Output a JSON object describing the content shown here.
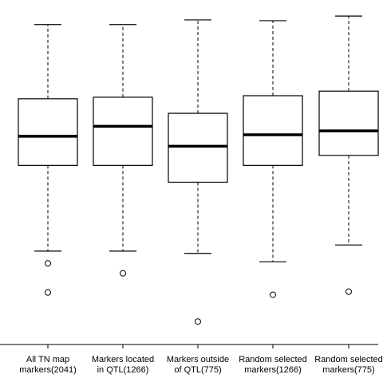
{
  "chart_data": {
    "type": "box",
    "title": "",
    "xlabel": "",
    "ylabel": "",
    "categories": [
      "All TN map\nmarkers(2041)",
      "Markers located\nin QTL(1266)",
      "Markers outside\nof QTL(775)",
      "Random selected\nmarkers(1266)",
      "Random selected\nmarkers(775)"
    ],
    "ylim": [
      0,
      450
    ],
    "boxes": [
      {
        "whisker_low": 122,
        "q1": 234,
        "median": 272,
        "q3": 321,
        "whisker_high": 418,
        "outliers": [
          106,
          68
        ]
      },
      {
        "whisker_low": 122,
        "q1": 234,
        "median": 285,
        "q3": 323,
        "whisker_high": 418,
        "outliers": [
          93
        ]
      },
      {
        "whisker_low": 119,
        "q1": 212,
        "median": 259,
        "q3": 302,
        "whisker_high": 424,
        "outliers": [
          30
        ]
      },
      {
        "whisker_low": 108,
        "q1": 234,
        "median": 274,
        "q3": 325,
        "whisker_high": 423,
        "outliers": [
          65
        ]
      },
      {
        "whisker_low": 130,
        "q1": 247,
        "median": 279,
        "q3": 331,
        "whisker_high": 429,
        "outliers": [
          69
        ]
      }
    ],
    "grid": false,
    "legend": "none"
  }
}
